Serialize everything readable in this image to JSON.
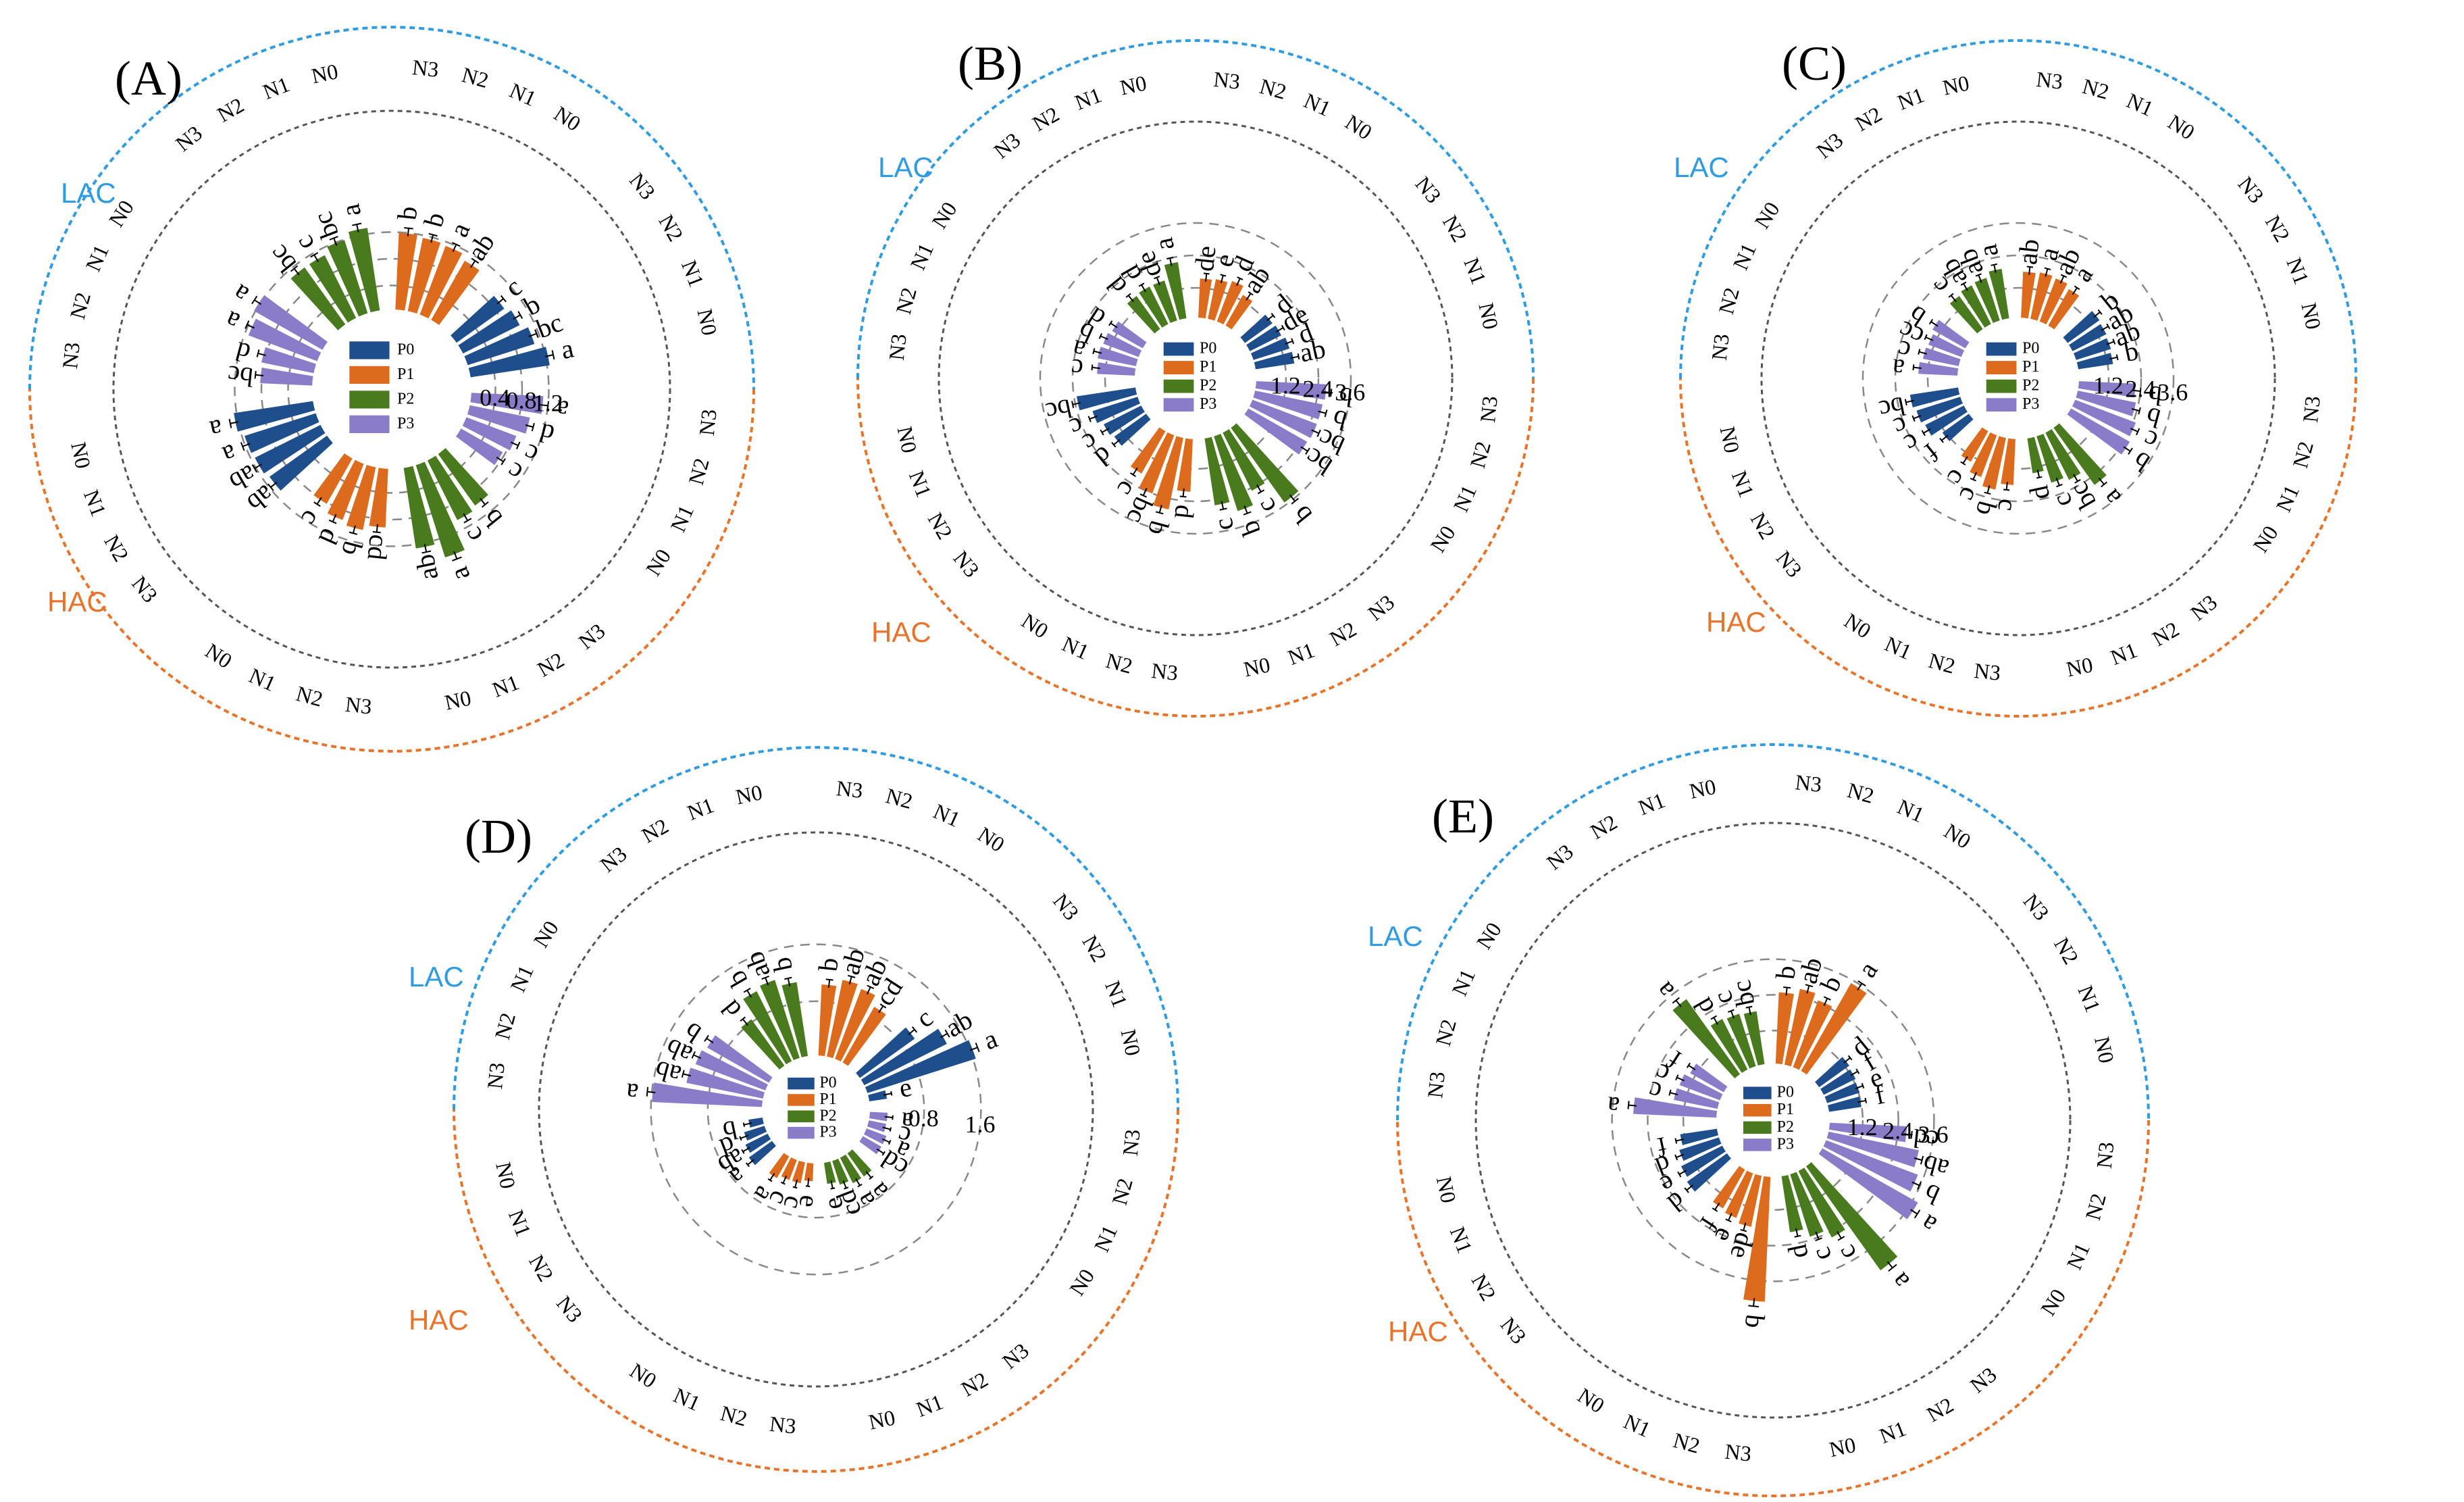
{
  "figure_title": "",
  "group_labels": [
    "LAC",
    "HAC"
  ],
  "nitrogen_levels": [
    "N0",
    "N1",
    "N2",
    "N3"
  ],
  "colors": {
    "P0": "#1f4e8c",
    "P1": "#dd6b1e",
    "P2": "#4a7a1e",
    "P3": "#8a7cc8",
    "lac_ring": "#2f9be0",
    "hac_ring": "#e8732a",
    "mid_ring": "#555555",
    "grid": "#888888"
  },
  "chart_data": [
    {
      "type": "radial-bar",
      "label": "(A)",
      "legend": [
        "P0",
        "P1",
        "P2",
        "P3"
      ],
      "rmax": 1.6,
      "rticks": [
        0.4,
        0.8,
        1.2
      ],
      "rtick_labels": [
        "0.4",
        "0.8",
        "1.2"
      ],
      "phosphorus_levels": [
        "P0",
        "P1",
        "P2",
        "P3"
      ],
      "series": [
        {
          "group": "LAC",
          "phosphorus": "P0",
          "nitrogen": [
            "N0",
            "N1",
            "N2",
            "N3"
          ],
          "values": [
            1.2,
            1.05,
            0.95,
            0.88
          ],
          "letters": [
            "a",
            "bc",
            "b",
            "c"
          ]
        },
        {
          "group": "LAC",
          "phosphorus": "P1",
          "nitrogen": [
            "N0",
            "N1",
            "N2",
            "N3"
          ],
          "values": [
            1.02,
            1.1,
            1.12,
            1.15
          ],
          "letters": [
            "ab",
            "a",
            "b",
            "b"
          ]
        },
        {
          "group": "LAC",
          "phosphorus": "P2",
          "nitrogen": [
            "N0",
            "N1",
            "N2",
            "N3"
          ],
          "values": [
            1.25,
            1.15,
            1.05,
            1.05
          ],
          "letters": [
            "a",
            "bc",
            "c",
            "bc"
          ]
        },
        {
          "group": "LAC",
          "phosphorus": "P3",
          "nitrogen": [
            "N0",
            "N1",
            "N2",
            "N3"
          ],
          "values": [
            1.18,
            1.1,
            0.8,
            0.78
          ],
          "letters": [
            "a",
            "a",
            "d",
            "bc"
          ]
        },
        {
          "group": "HAC",
          "phosphorus": "P0",
          "nitrogen": [
            "N0",
            "N1",
            "N2",
            "N3"
          ],
          "values": [
            1.2,
            1.12,
            1.1,
            1.06
          ],
          "letters": [
            "a",
            "a",
            "ab",
            "ab"
          ]
        },
        {
          "group": "HAC",
          "phosphorus": "P1",
          "nitrogen": [
            "N0",
            "N1",
            "N2",
            "N3"
          ],
          "values": [
            0.78,
            0.9,
            0.96,
            0.88
          ],
          "letters": [
            "c",
            "d",
            "b",
            "cd"
          ]
        },
        {
          "group": "HAC",
          "phosphorus": "P2",
          "nitrogen": [
            "N0",
            "N1",
            "N2",
            "N3"
          ],
          "values": [
            1.22,
            1.45,
            1.0,
            0.95
          ],
          "letters": [
            "ab",
            "a",
            "c",
            "b"
          ]
        },
        {
          "group": "HAC",
          "phosphorus": "P3",
          "nitrogen": [
            "N0",
            "N1",
            "N2",
            "N3"
          ],
          "values": [
            0.72,
            0.8,
            0.92,
            1.08
          ],
          "letters": [
            "c",
            "c",
            "d",
            "a"
          ]
        }
      ]
    },
    {
      "type": "radial-bar",
      "label": "(B)",
      "legend": [
        "P0",
        "P1",
        "P2",
        "P3"
      ],
      "rmax": 4.6,
      "rticks": [
        1.2,
        2.4,
        3.6
      ],
      "rtick_labels": [
        "1.2",
        "2.4",
        "3.6"
      ],
      "phosphorus_levels": [
        "P0",
        "P1",
        "P2",
        "P3"
      ],
      "series": [
        {
          "group": "LAC",
          "phosphorus": "P0",
          "nitrogen": [
            "N0",
            "N1",
            "N2",
            "N3"
          ],
          "values": [
            1.45,
            1.4,
            1.3,
            1.25
          ],
          "letters": [
            "ab",
            "d",
            "de",
            "d"
          ]
        },
        {
          "group": "LAC",
          "phosphorus": "P1",
          "nitrogen": [
            "N0",
            "N1",
            "N2",
            "N3"
          ],
          "values": [
            1.3,
            1.6,
            1.5,
            1.45
          ],
          "letters": [
            "ab",
            "d",
            "e",
            "de"
          ]
        },
        {
          "group": "LAC",
          "phosphorus": "P2",
          "nitrogen": [
            "N0",
            "N1",
            "N2",
            "N3"
          ],
          "values": [
            2.1,
            1.55,
            1.55,
            1.5
          ],
          "letters": [
            "a",
            "de",
            "d",
            "d"
          ]
        },
        {
          "group": "LAC",
          "phosphorus": "P3",
          "nitrogen": [
            "N0",
            "N1",
            "N2",
            "N3"
          ],
          "values": [
            1.3,
            1.4,
            1.45,
            1.4
          ],
          "letters": [
            "d",
            "b",
            "a",
            "c"
          ]
        },
        {
          "group": "HAC",
          "phosphorus": "P0",
          "nitrogen": [
            "N0",
            "N1",
            "N2",
            "N3"
          ],
          "values": [
            2.2,
            1.75,
            1.55,
            1.45
          ],
          "letters": [
            "bc",
            "c",
            "c",
            "d"
          ]
        },
        {
          "group": "HAC",
          "phosphorus": "P1",
          "nitrogen": [
            "N0",
            "N1",
            "N2",
            "N3"
          ],
          "values": [
            1.8,
            2.3,
            2.7,
            1.95
          ],
          "letters": [
            "c",
            "bc",
            "b",
            "d"
          ]
        },
        {
          "group": "HAC",
          "phosphorus": "P2",
          "nitrogen": [
            "N0",
            "N1",
            "N2",
            "N3"
          ],
          "values": [
            2.5,
            2.9,
            2.4,
            3.4
          ],
          "letters": [
            "c",
            "b",
            "c",
            "b"
          ]
        },
        {
          "group": "HAC",
          "phosphorus": "P3",
          "nitrogen": [
            "N0",
            "N1",
            "N2",
            "N3"
          ],
          "values": [
            2.5,
            2.55,
            2.55,
            2.6
          ],
          "letters": [
            "bc",
            "bc",
            "b",
            "b"
          ]
        }
      ]
    },
    {
      "type": "radial-bar",
      "label": "(C)",
      "legend": [
        "P0",
        "P1",
        "P2",
        "P3"
      ],
      "rmax": 4.6,
      "rticks": [
        1.2,
        2.4,
        3.6
      ],
      "rtick_labels": [
        "1.2",
        "2.4",
        "3.6"
      ],
      "phosphorus_levels": [
        "P0",
        "P1",
        "P2",
        "P3"
      ],
      "series": [
        {
          "group": "LAC",
          "phosphorus": "P0",
          "nitrogen": [
            "N0",
            "N1",
            "N2",
            "N3"
          ],
          "values": [
            1.3,
            1.35,
            1.4,
            1.45
          ],
          "letters": [
            "b",
            "ab",
            "ab",
            "b"
          ]
        },
        {
          "group": "LAC",
          "phosphorus": "P1",
          "nitrogen": [
            "N0",
            "N1",
            "N2",
            "N3"
          ],
          "values": [
            1.55,
            1.7,
            1.75,
            1.7
          ],
          "letters": [
            "a",
            "ab",
            "a",
            "ab"
          ]
        },
        {
          "group": "LAC",
          "phosphorus": "P2",
          "nitrogen": [
            "N0",
            "N1",
            "N2",
            "N3"
          ],
          "values": [
            1.85,
            1.65,
            1.6,
            1.5
          ],
          "letters": [
            "a",
            "ab",
            "ab",
            "c"
          ]
        },
        {
          "group": "LAC",
          "phosphorus": "P3",
          "nitrogen": [
            "N0",
            "N1",
            "N2",
            "N3"
          ],
          "values": [
            1.4,
            1.3,
            1.35,
            1.45
          ],
          "letters": [
            "b",
            "cc",
            "c",
            "a"
          ]
        },
        {
          "group": "HAC",
          "phosphorus": "P0",
          "nitrogen": [
            "N0",
            "N1",
            "N2",
            "N3"
          ],
          "values": [
            1.8,
            1.7,
            1.6,
            1.2
          ],
          "letters": [
            "bc",
            "c",
            "c",
            "f"
          ]
        },
        {
          "group": "HAC",
          "phosphorus": "P1",
          "nitrogen": [
            "N0",
            "N1",
            "N2",
            "N3"
          ],
          "values": [
            1.3,
            1.65,
            1.95,
            1.7
          ],
          "letters": [
            "c",
            "c",
            "b",
            "c"
          ]
        },
        {
          "group": "HAC",
          "phosphorus": "P2",
          "nitrogen": [
            "N0",
            "N1",
            "N2",
            "N3"
          ],
          "values": [
            1.3,
            1.8,
            1.95,
            2.6
          ],
          "letters": [
            "d",
            "c",
            "bc",
            "a"
          ]
        },
        {
          "group": "HAC",
          "phosphorus": "P3",
          "nitrogen": [
            "N0",
            "N1",
            "N2",
            "N3"
          ],
          "values": [
            2.5,
            2.4,
            2.2,
            2.1
          ],
          "letters": [
            "b",
            "c",
            "b",
            "b"
          ]
        }
      ]
    },
    {
      "type": "radial-bar",
      "label": "(D)",
      "legend": [
        "P0",
        "P1",
        "P2",
        "P3"
      ],
      "rmax": 2.3,
      "rticks": [
        0.8,
        1.6
      ],
      "rtick_labels": [
        "0.8",
        "1.6"
      ],
      "phosphorus_levels": [
        "P0",
        "P1",
        "P2",
        "P3"
      ],
      "series": [
        {
          "group": "LAC",
          "phosphorus": "P0",
          "nitrogen": [
            "N0",
            "N1",
            "N2",
            "N3"
          ],
          "values": [
            0.25,
            1.6,
            1.3,
            0.95
          ],
          "letters": [
            "e",
            "a",
            "ab",
            "c"
          ]
        },
        {
          "group": "LAC",
          "phosphorus": "P1",
          "nitrogen": [
            "N0",
            "N1",
            "N2",
            "N3"
          ],
          "values": [
            0.9,
            1.05,
            1.1,
            1.0
          ],
          "letters": [
            "cd",
            "ab",
            "ab",
            "b"
          ]
        },
        {
          "group": "LAC",
          "phosphorus": "P2",
          "nitrogen": [
            "N0",
            "N1",
            "N2",
            "N3"
          ],
          "values": [
            1.05,
            1.15,
            1.1,
            0.8
          ],
          "letters": [
            "b",
            "ab",
            "b",
            "d"
          ]
        },
        {
          "group": "LAC",
          "phosphorus": "P3",
          "nitrogen": [
            "N0",
            "N1",
            "N2",
            "N3"
          ],
          "values": [
            1.0,
            1.05,
            1.1,
            1.55
          ],
          "letters": [
            "b",
            "ab",
            "ab",
            "a"
          ]
        },
        {
          "group": "HAC",
          "phosphorus": "P0",
          "nitrogen": [
            "N0",
            "N1",
            "N2",
            "N3"
          ],
          "values": [
            0.2,
            0.3,
            0.35,
            0.4
          ],
          "letters": [
            "b",
            "d",
            "ab",
            "a"
          ]
        },
        {
          "group": "HAC",
          "phosphorus": "P1",
          "nitrogen": [
            "N0",
            "N1",
            "N2",
            "N3"
          ],
          "values": [
            0.35,
            0.3,
            0.3,
            0.25
          ],
          "letters": [
            "a",
            "c",
            "c",
            "e"
          ]
        },
        {
          "group": "HAC",
          "phosphorus": "P2",
          "nitrogen": [
            "N0",
            "N1",
            "N2",
            "N3"
          ],
          "values": [
            0.3,
            0.35,
            0.4,
            0.4
          ],
          "letters": [
            "e",
            "cd",
            "a",
            "a"
          ]
        },
        {
          "group": "HAC",
          "phosphorus": "P3",
          "nitrogen": [
            "N0",
            "N1",
            "N2",
            "N3"
          ],
          "values": [
            0.3,
            0.3,
            0.25,
            0.25
          ],
          "letters": [
            "cd",
            "a",
            "c",
            "a"
          ]
        }
      ]
    },
    {
      "type": "radial-bar",
      "label": "(E)",
      "legend": [
        "P0",
        "P1",
        "P2",
        "P3"
      ],
      "rmax": 5.0,
      "rticks": [
        1.2,
        2.4,
        3.6
      ],
      "rtick_labels": [
        "1.2",
        "2.4",
        "3.6"
      ],
      "phosphorus_levels": [
        "P0",
        "P1",
        "P2",
        "P3"
      ],
      "series": [
        {
          "group": "LAC",
          "phosphorus": "P0",
          "nitrogen": [
            "N0",
            "N1",
            "N2",
            "N3"
          ],
          "values": [
            1.1,
            1.15,
            1.2,
            1.25
          ],
          "letters": [
            "f",
            "e",
            "f",
            "d"
          ]
        },
        {
          "group": "LAC",
          "phosphorus": "P1",
          "nitrogen": [
            "N0",
            "N1",
            "N2",
            "N3"
          ],
          "values": [
            3.4,
            2.4,
            2.6,
            2.4
          ],
          "letters": [
            "a",
            "b",
            "ab",
            "b"
          ]
        },
        {
          "group": "LAC",
          "phosphorus": "P2",
          "nitrogen": [
            "N0",
            "N1",
            "N2",
            "N3"
          ],
          "values": [
            1.8,
            1.85,
            1.9,
            3.1
          ],
          "letters": [
            "bc",
            "c",
            "d",
            "a"
          ]
        },
        {
          "group": "LAC",
          "phosphorus": "P3",
          "nitrogen": [
            "N0",
            "N1",
            "N2",
            "N3"
          ],
          "values": [
            1.3,
            1.45,
            1.5,
            2.8
          ],
          "letters": [
            "f",
            "c",
            "c",
            "a"
          ]
        },
        {
          "group": "HAC",
          "phosphorus": "P0",
          "nitrogen": [
            "N0",
            "N1",
            "N2",
            "N3"
          ],
          "values": [
            1.25,
            1.4,
            1.55,
            1.65
          ],
          "letters": [
            "f",
            "d",
            "e",
            "d"
          ]
        },
        {
          "group": "HAC",
          "phosphorus": "P1",
          "nitrogen": [
            "N0",
            "N1",
            "N2",
            "N3"
          ],
          "values": [
            1.5,
            1.6,
            1.75,
            4.2
          ],
          "letters": [
            "f",
            "e",
            "de",
            "b"
          ]
        },
        {
          "group": "HAC",
          "phosphorus": "P2",
          "nitrogen": [
            "N0",
            "N1",
            "N2",
            "N3"
          ],
          "values": [
            1.9,
            2.2,
            2.5,
            4.3
          ],
          "letters": [
            "d",
            "c",
            "c",
            "a"
          ]
        },
        {
          "group": "HAC",
          "phosphorus": "P3",
          "nitrogen": [
            "N0",
            "N1",
            "N2",
            "N3"
          ],
          "values": [
            3.7,
            3.3,
            3.1,
            2.6
          ],
          "letters": [
            "a",
            "b",
            "ab",
            "cd"
          ]
        }
      ]
    }
  ]
}
